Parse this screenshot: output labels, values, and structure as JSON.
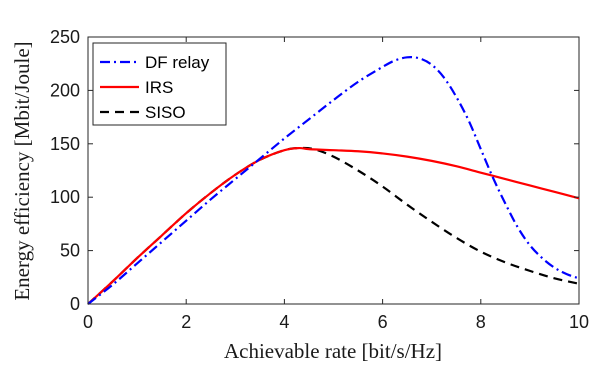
{
  "chart_data": {
    "type": "line",
    "xlabel": "Achievable rate [bit/s/Hz]",
    "ylabel": "Energy efficiency [Mbit/Joule]",
    "xlim": [
      0,
      10
    ],
    "ylim": [
      0,
      250
    ],
    "xticks": [
      "0",
      "2",
      "4",
      "6",
      "8",
      "10"
    ],
    "yticks": [
      "0",
      "50",
      "100",
      "150",
      "200",
      "250"
    ],
    "grid": false,
    "legend_position": "top-left",
    "series": [
      {
        "name": "DF relay",
        "color": "#0000ff",
        "style": "dash-dot",
        "x": [
          0,
          0.5,
          1,
          1.5,
          2,
          2.5,
          3,
          3.5,
          4,
          4.5,
          5,
          5.5,
          6,
          6.25,
          6.5,
          6.75,
          7,
          7.25,
          7.5,
          7.75,
          8,
          8.25,
          8.5,
          8.75,
          9,
          9.25,
          9.5,
          9.75,
          10
        ],
        "y": [
          0,
          18,
          38,
          58,
          78,
          98,
          117,
          136,
          155,
          173,
          191,
          208,
          222,
          228,
          231,
          230,
          224,
          212,
          194,
          172,
          145,
          118,
          94,
          72,
          55,
          43,
          34,
          28,
          24
        ]
      },
      {
        "name": "IRS",
        "color": "#ff0000",
        "style": "solid",
        "x": [
          0,
          0.5,
          1,
          1.5,
          2,
          2.5,
          3,
          3.5,
          4,
          4.3,
          4.5,
          5,
          5.5,
          6,
          6.5,
          7,
          7.5,
          8,
          8.5,
          9,
          9.5,
          10
        ],
        "y": [
          0,
          21,
          43,
          64,
          85,
          104,
          121,
          135,
          144,
          146,
          145,
          144,
          143,
          141,
          138,
          134,
          129,
          123,
          117,
          111,
          105,
          99
        ]
      },
      {
        "name": "SISO",
        "color": "#000000",
        "style": "dashed",
        "x": [
          0,
          0.5,
          1,
          1.5,
          2,
          2.5,
          3,
          3.5,
          4,
          4.3,
          4.6,
          5,
          5.5,
          6,
          6.5,
          7,
          7.5,
          8,
          8.5,
          9,
          9.5,
          10
        ],
        "y": [
          0,
          21,
          43,
          64,
          85,
          104,
          121,
          135,
          144,
          146,
          145,
          138,
          125,
          110,
          93,
          77,
          62,
          49,
          39,
          31,
          24,
          19
        ]
      }
    ]
  }
}
